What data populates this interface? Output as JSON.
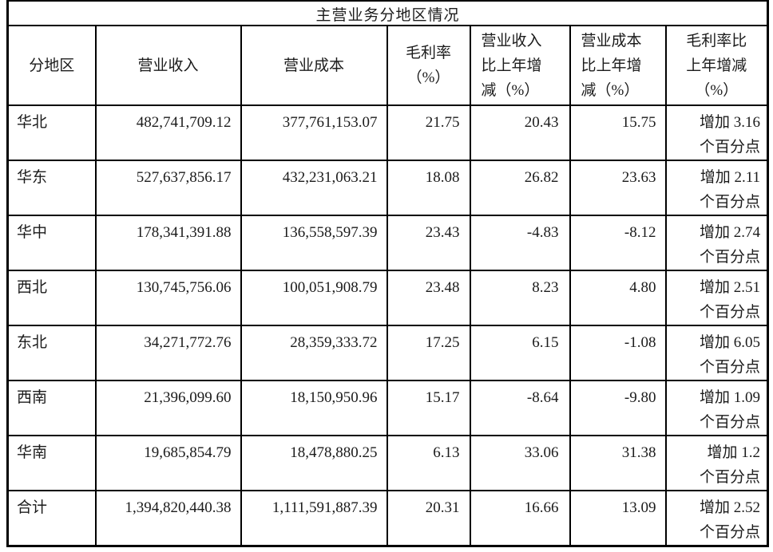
{
  "title": "主营业务分地区情况",
  "colors": {
    "border": "#000000",
    "text": "#1b1b1b",
    "background": "#ffffff"
  },
  "table": {
    "column_keys": [
      "region",
      "revenue",
      "cost",
      "margin",
      "revenue_change",
      "cost_change",
      "margin_change"
    ],
    "headers": [
      "分地区",
      "营业收入",
      "营业成本",
      "毛利率\n（%）",
      "营业收入\n比上年增\n减（%）",
      "营业成本\n比上年增\n减（%）",
      "毛利率比\n上年增减\n（%）"
    ],
    "rows": [
      {
        "region": "华北",
        "revenue": "482,741,709.12",
        "cost": "377,761,153.07",
        "margin": "21.75",
        "revenue_change": "20.43",
        "cost_change": "15.75",
        "margin_change": "增加 3.16\n个百分点"
      },
      {
        "region": "华东",
        "revenue": "527,637,856.17",
        "cost": "432,231,063.21",
        "margin": "18.08",
        "revenue_change": "26.82",
        "cost_change": "23.63",
        "margin_change": "增加 2.11\n个百分点"
      },
      {
        "region": "华中",
        "revenue": "178,341,391.88",
        "cost": "136,558,597.39",
        "margin": "23.43",
        "revenue_change": "-4.83",
        "cost_change": "-8.12",
        "margin_change": "增加 2.74\n个百分点"
      },
      {
        "region": "西北",
        "revenue": "130,745,756.06",
        "cost": "100,051,908.79",
        "margin": "23.48",
        "revenue_change": "8.23",
        "cost_change": "4.80",
        "margin_change": "增加 2.51\n个百分点"
      },
      {
        "region": "东北",
        "revenue": "34,271,772.76",
        "cost": "28,359,333.72",
        "margin": "17.25",
        "revenue_change": "6.15",
        "cost_change": "-1.08",
        "margin_change": "增加 6.05\n个百分点"
      },
      {
        "region": "西南",
        "revenue": "21,396,099.60",
        "cost": "18,150,950.96",
        "margin": "15.17",
        "revenue_change": "-8.64",
        "cost_change": "-9.80",
        "margin_change": "增加 1.09\n个百分点"
      },
      {
        "region": "华南",
        "revenue": "19,685,854.79",
        "cost": "18,478,880.25",
        "margin": "6.13",
        "revenue_change": "33.06",
        "cost_change": "31.38",
        "margin_change": "增加 1.2\n个百分点"
      },
      {
        "region": "合计",
        "revenue": "1,394,820,440.38",
        "cost": "1,111,591,887.39",
        "margin": "20.31",
        "revenue_change": "16.66",
        "cost_change": "13.09",
        "margin_change": "增加 2.52\n个百分点"
      }
    ]
  }
}
